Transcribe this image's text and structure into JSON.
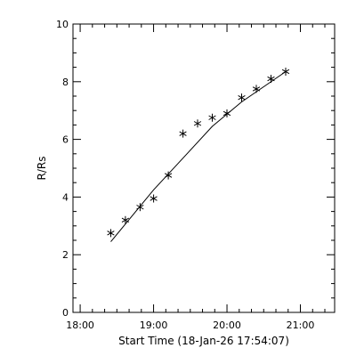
{
  "chart_data": {
    "type": "scatter",
    "xlabel": "Start Time (18-Jan-26 17:54:07)",
    "ylabel": "R/Rs",
    "xlim": [
      "17:54:07",
      "21:28:00"
    ],
    "ylim": [
      0,
      10
    ],
    "x_tick_labels": [
      "18:00",
      "19:00",
      "20:00",
      "21:00"
    ],
    "y_tick_labels": [
      "0",
      "2",
      "4",
      "6",
      "8",
      "10"
    ],
    "grid": false,
    "series": [
      {
        "marker": "asterisk",
        "points": [
          {
            "x": "18:25",
            "y": 2.75
          },
          {
            "x": "18:37",
            "y": 3.2
          },
          {
            "x": "18:49",
            "y": 3.65
          },
          {
            "x": "19:00",
            "y": 3.95
          },
          {
            "x": "19:12",
            "y": 4.75
          },
          {
            "x": "19:24",
            "y": 6.2
          },
          {
            "x": "19:36",
            "y": 6.55
          },
          {
            "x": "19:48",
            "y": 6.75
          },
          {
            "x": "20:00",
            "y": 6.9
          },
          {
            "x": "20:12",
            "y": 7.45
          },
          {
            "x": "20:24",
            "y": 7.75
          },
          {
            "x": "20:36",
            "y": 8.1
          },
          {
            "x": "20:48",
            "y": 8.35
          }
        ]
      },
      {
        "style": "line",
        "points": [
          {
            "x": "18:25",
            "y": 2.45
          },
          {
            "x": "19:00",
            "y": 4.25
          },
          {
            "x": "19:24",
            "y": 5.35
          },
          {
            "x": "19:48",
            "y": 6.45
          },
          {
            "x": "20:12",
            "y": 7.3
          },
          {
            "x": "20:48",
            "y": 8.35
          }
        ]
      }
    ]
  }
}
